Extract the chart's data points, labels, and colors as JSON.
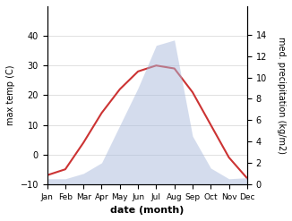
{
  "months": [
    "Jan",
    "Feb",
    "Mar",
    "Apr",
    "May",
    "Jun",
    "Jul",
    "Aug",
    "Sep",
    "Oct",
    "Nov",
    "Dec"
  ],
  "month_indices": [
    1,
    2,
    3,
    4,
    5,
    6,
    7,
    8,
    9,
    10,
    11,
    12
  ],
  "temperature": [
    -7,
    -5,
    4,
    14,
    22,
    28,
    30,
    29,
    21,
    10,
    -1,
    -8
  ],
  "precipitation": [
    0.5,
    0.5,
    1.0,
    2.0,
    5.5,
    9.0,
    13.0,
    13.5,
    4.5,
    1.5,
    0.5,
    0.6
  ],
  "temp_ylim": [
    -10,
    50
  ],
  "precip_ylim": [
    0,
    16.67
  ],
  "temp_yticks": [
    -10,
    0,
    10,
    20,
    30,
    40
  ],
  "precip_yticks": [
    0,
    2,
    4,
    6,
    8,
    10,
    12,
    14
  ],
  "temp_color": "#cc3333",
  "precip_color": "#aabbdd",
  "precip_edge_color": "#aabbdd",
  "xlabel": "date (month)",
  "ylabel_left": "max temp (C)",
  "ylabel_right": "med. precipitation (kg/m2)",
  "background_color": "#ffffff"
}
